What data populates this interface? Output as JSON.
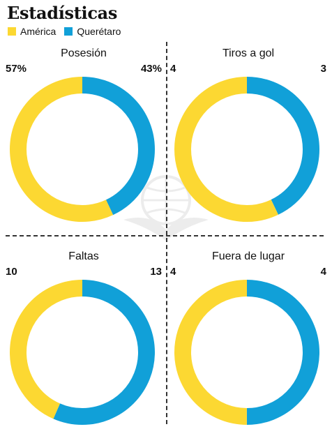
{
  "header": {
    "title": "Estadísticas"
  },
  "legend": [
    {
      "label": "América",
      "color": "#fcd832"
    },
    {
      "label": "Querétaro",
      "color": "#11a0d8"
    }
  ],
  "chart_data": [
    {
      "type": "pie",
      "title": "Posesión",
      "labels": {
        "left": "57%",
        "right": "43%"
      },
      "categories": [
        "América",
        "Querétaro"
      ],
      "values": [
        57,
        43
      ],
      "colors": [
        "#fcd832",
        "#11a0d8"
      ]
    },
    {
      "type": "pie",
      "title": "Tiros a gol",
      "labels": {
        "left": "4",
        "right": "3"
      },
      "categories": [
        "América",
        "Querétaro"
      ],
      "values": [
        4,
        3
      ],
      "colors": [
        "#fcd832",
        "#11a0d8"
      ]
    },
    {
      "type": "pie",
      "title": "Faltas",
      "labels": {
        "left": "10",
        "right": "13"
      },
      "categories": [
        "América",
        "Querétaro"
      ],
      "values": [
        10,
        13
      ],
      "colors": [
        "#fcd832",
        "#11a0d8"
      ]
    },
    {
      "type": "pie",
      "title": "Fuera de lugar",
      "labels": {
        "left": "4",
        "right": "4"
      },
      "categories": [
        "América",
        "Querétaro"
      ],
      "values": [
        4,
        4
      ],
      "colors": [
        "#fcd832",
        "#11a0d8"
      ]
    }
  ]
}
